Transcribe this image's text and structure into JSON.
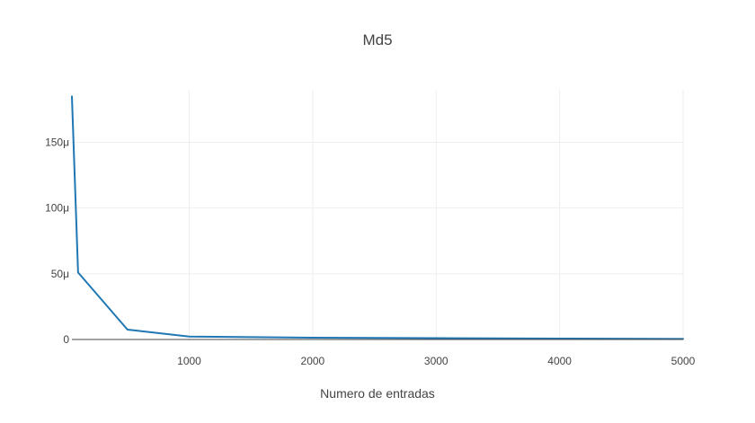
{
  "chart_data": {
    "type": "line",
    "title": "Md5",
    "xlabel": "Numero de entradas",
    "ylabel": "",
    "xlim": [
      50,
      5000
    ],
    "ylim": [
      0,
      190
    ],
    "x_ticks": [
      1000,
      2000,
      3000,
      4000,
      5000
    ],
    "x_tick_labels": [
      "1000",
      "2000",
      "3000",
      "4000",
      "5000"
    ],
    "y_ticks": [
      0,
      50,
      100,
      150
    ],
    "y_tick_labels": [
      "0",
      "50μ",
      "100μ",
      "150μ"
    ],
    "y_unit": "μ",
    "grid": true,
    "legend": "none",
    "series": [
      {
        "color": "#1f77b4",
        "x": [
          50,
          100,
          500,
          1000,
          2000,
          3000,
          4000,
          5000
        ],
        "y": [
          185,
          51,
          7.5,
          2.2,
          1.4,
          1.0,
          0.7,
          0.4
        ]
      }
    ]
  }
}
